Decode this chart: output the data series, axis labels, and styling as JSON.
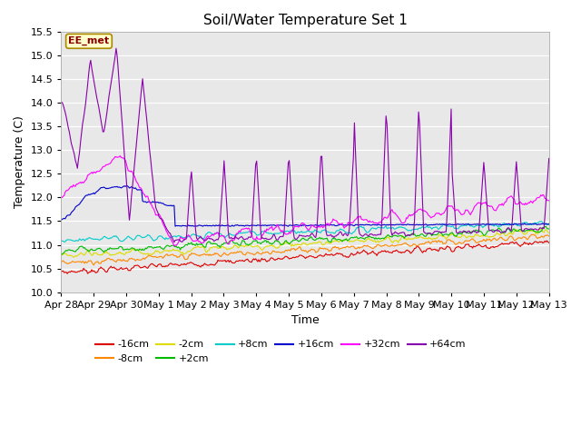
{
  "title": "Soil/Water Temperature Set 1",
  "xlabel": "Time",
  "ylabel": "Temperature (C)",
  "ylim": [
    10.0,
    15.5
  ],
  "plot_bg_color": "#e8e8e8",
  "annotation_text": "EE_met",
  "annotation_bg": "#ffffcc",
  "annotation_border": "#aa8800",
  "series": [
    {
      "label": "-16cm",
      "color": "#dd0000"
    },
    {
      "label": "-8cm",
      "color": "#ff8800"
    },
    {
      "label": "-2cm",
      "color": "#dddd00"
    },
    {
      "label": "+2cm",
      "color": "#00bb00"
    },
    {
      "label": "+8cm",
      "color": "#00cccc"
    },
    {
      "label": "+16cm",
      "color": "#0000cc"
    },
    {
      "label": "+32cm",
      "color": "#ff00ff"
    },
    {
      "label": "+64cm",
      "color": "#8800aa"
    }
  ],
  "tick_labels": [
    "Apr 28",
    "Apr 29",
    "Apr 30",
    "May 1",
    "May 2",
    "May 3",
    "May 4",
    "May 5",
    "May 6",
    "May 7",
    "May 8",
    "May 9",
    "May 10",
    "May 11",
    "May 12",
    "May 13"
  ],
  "yticks": [
    10.0,
    10.5,
    11.0,
    11.5,
    12.0,
    12.5,
    13.0,
    13.5,
    14.0,
    14.5,
    15.0,
    15.5
  ],
  "n_points": 480,
  "n_days": 15
}
